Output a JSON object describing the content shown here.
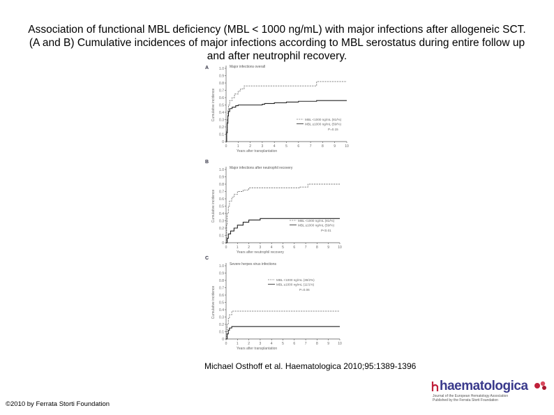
{
  "title": "Association of functional MBL deficiency (MBL < 1000 ng/mL) with major infections after allogeneic SCT. (A and B) Cumulative incidences of major infections according to MBL serostatus during entire follow up and after neutrophil recovery.",
  "citation": "Michael Osthoff et al. Haematologica 2010;95:1389-1396",
  "copyright": "©2010 by Ferrata Storti Foundation",
  "logo": {
    "name": "haematologica",
    "tagline1": "Journal of the European Hematology Association",
    "tagline2": "Published by the Ferrata Storti Foundation",
    "color": "#3a3a8c",
    "accent": "#c0203a"
  },
  "chart_data": [
    {
      "type": "line",
      "panel_label": "A",
      "title": "Major infections overall",
      "xlabel": "Years after transplantation",
      "ylabel": "Cumulative incidence",
      "xlim": [
        0,
        10
      ],
      "ylim": [
        0,
        1.0
      ],
      "xticks": [
        "0",
        "1",
        "2",
        "3",
        "4",
        "5",
        "6",
        "7",
        "8",
        "9",
        "10"
      ],
      "yticks": [
        "0",
        "0.1",
        "0.2",
        "0.3",
        "0.4",
        "0.5",
        "0.6",
        "0.7",
        "0.8",
        "0.9",
        "1.0"
      ],
      "legend_position": "bottom-right",
      "annotation": "P=0.15",
      "series": [
        {
          "name": "MBL <1000 ng/mL (81/%)",
          "style": "dashed",
          "x": [
            0,
            0.05,
            0.1,
            0.15,
            0.2,
            0.3,
            0.5,
            0.7,
            1.0,
            1.2,
            1.5,
            2.0,
            7.5,
            10
          ],
          "y": [
            0,
            0.15,
            0.3,
            0.42,
            0.5,
            0.56,
            0.6,
            0.65,
            0.69,
            0.72,
            0.76,
            0.76,
            0.82,
            0.82
          ]
        },
        {
          "name": "MBL ≥1000 ng/mL (59/%)",
          "style": "solid",
          "x": [
            0,
            0.05,
            0.1,
            0.15,
            0.2,
            0.3,
            0.5,
            0.8,
            1.0,
            2.0,
            3.0,
            3.2,
            4.0,
            5.0,
            6.0,
            7.0,
            7.5,
            10
          ],
          "y": [
            0,
            0.12,
            0.25,
            0.35,
            0.41,
            0.45,
            0.47,
            0.49,
            0.5,
            0.5,
            0.51,
            0.52,
            0.53,
            0.54,
            0.55,
            0.55,
            0.56,
            0.56
          ]
        }
      ]
    },
    {
      "type": "line",
      "panel_label": "B",
      "title": "Major infections after neutrophil recovery",
      "xlabel": "Years after neutrophil recovery",
      "ylabel": "Cumulative incidence",
      "xlim": [
        0,
        10
      ],
      "ylim": [
        0,
        1.0
      ],
      "xticks": [
        "0",
        "1",
        "2",
        "3",
        "4",
        "5",
        "6",
        "7",
        "8",
        "9",
        "10"
      ],
      "yticks": [
        "0",
        "0.1",
        "0.2",
        "0.3",
        "0.4",
        "0.5",
        "0.6",
        "0.7",
        "0.8",
        "0.9",
        "1.0"
      ],
      "legend_position": "bottom-right",
      "annotation": "P<0.01",
      "series": [
        {
          "name": "MBL <1000 ng/mL (81/%)",
          "style": "dashed",
          "x": [
            0,
            0.05,
            0.1,
            0.2,
            0.3,
            0.5,
            0.7,
            1.0,
            1.5,
            2.0,
            6.5,
            7.2,
            10
          ],
          "y": [
            0,
            0.25,
            0.4,
            0.5,
            0.57,
            0.62,
            0.66,
            0.7,
            0.72,
            0.75,
            0.76,
            0.8,
            0.8
          ]
        },
        {
          "name": "MBL ≥1000 ng/mL (59/%)",
          "style": "solid",
          "x": [
            0,
            0.1,
            0.2,
            0.4,
            0.7,
            1.0,
            1.5,
            2.0,
            3.0,
            10
          ],
          "y": [
            0,
            0.06,
            0.12,
            0.16,
            0.2,
            0.24,
            0.28,
            0.31,
            0.33,
            0.33
          ]
        }
      ]
    },
    {
      "type": "line",
      "panel_label": "C",
      "title": "Severe herpes virus infections",
      "xlabel": "Years after transplantation",
      "ylabel": "Cumulative incidence",
      "xlim": [
        0,
        10
      ],
      "ylim": [
        0,
        1.0
      ],
      "xticks": [
        "0",
        "1",
        "2",
        "3",
        "4",
        "5",
        "6",
        "7",
        "8",
        "9",
        "10"
      ],
      "yticks": [
        "0",
        "0.1",
        "0.2",
        "0.3",
        "0.4",
        "0.5",
        "0.6",
        "0.7",
        "0.8",
        "0.9",
        "1.0"
      ],
      "legend_position": "top-right",
      "annotation": "P=0.06",
      "series": [
        {
          "name": "MBL <1000 ng/mL (38/2%)",
          "style": "dashed",
          "x": [
            0,
            0.05,
            0.1,
            0.2,
            0.3,
            0.5,
            10
          ],
          "y": [
            0,
            0.1,
            0.2,
            0.28,
            0.33,
            0.38,
            0.38
          ]
        },
        {
          "name": "MBL ≥1000 ng/mL (11/1%)",
          "style": "solid",
          "x": [
            0,
            0.1,
            0.2,
            0.3,
            0.5,
            10
          ],
          "y": [
            0,
            0.07,
            0.12,
            0.15,
            0.17,
            0.17
          ]
        }
      ]
    }
  ]
}
